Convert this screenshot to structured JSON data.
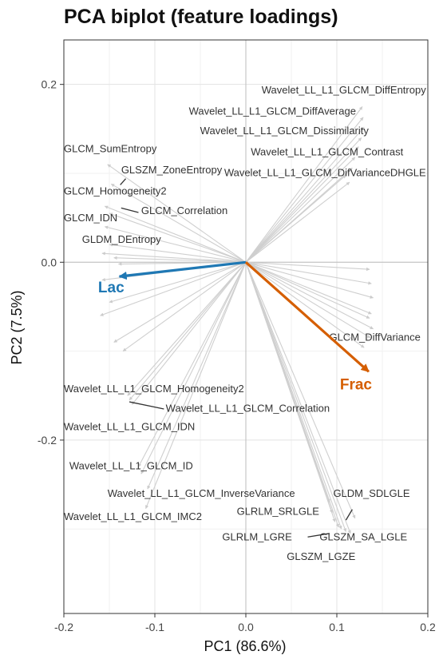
{
  "chart_data": {
    "type": "biplot",
    "title": "PCA biplot (feature loadings)",
    "xlabel": "PC1 (86.6%)",
    "ylabel": "PC2 (7.5%)",
    "xlim": [
      -0.2,
      0.2
    ],
    "ylim": [
      -0.395,
      0.25
    ],
    "xticks": [
      -0.2,
      -0.1,
      0.0,
      0.1,
      0.2
    ],
    "xtick_labels": [
      "-0.2",
      "-0.1",
      "0.0",
      "0.1",
      "0.2"
    ],
    "yticks": [
      -0.2,
      0.0,
      0.2
    ],
    "ytick_labels": [
      "-0.2",
      "0.0",
      "0.2"
    ],
    "grid": true,
    "groups": [
      {
        "name": "Lac",
        "x": -0.139,
        "y": -0.016,
        "color": "#1f78b4",
        "label_x": -0.148,
        "label_y": -0.034
      },
      {
        "name": "Frac",
        "x": 0.135,
        "y": -0.123,
        "color": "#d55e00",
        "label_x": 0.121,
        "label_y": -0.143
      }
    ],
    "loadings": [
      [
        0.128,
        0.175
      ],
      [
        0.129,
        0.163
      ],
      [
        0.13,
        0.152
      ],
      [
        0.127,
        0.14
      ],
      [
        0.124,
        0.13
      ],
      [
        0.12,
        0.118
      ],
      [
        0.117,
        0.106
      ],
      [
        0.11,
        0.098
      ],
      [
        0.114,
        0.09
      ],
      [
        -0.152,
        0.11
      ],
      [
        -0.148,
        0.088
      ],
      [
        -0.155,
        0.063
      ],
      [
        -0.15,
        0.055
      ],
      [
        -0.155,
        0.04
      ],
      [
        -0.15,
        0.02
      ],
      [
        -0.158,
        0.01
      ],
      [
        -0.145,
        0.005
      ],
      [
        -0.14,
        -0.002
      ],
      [
        -0.158,
        -0.02
      ],
      [
        -0.15,
        -0.045
      ],
      [
        -0.16,
        -0.06
      ],
      [
        -0.145,
        -0.09
      ],
      [
        -0.135,
        -0.1
      ],
      [
        -0.13,
        -0.15
      ],
      [
        -0.128,
        -0.155
      ],
      [
        -0.125,
        -0.16
      ],
      [
        -0.118,
        -0.23
      ],
      [
        -0.115,
        -0.238
      ],
      [
        -0.108,
        -0.255
      ],
      [
        -0.11,
        -0.277
      ],
      [
        0.136,
        -0.008
      ],
      [
        0.138,
        -0.024
      ],
      [
        0.14,
        -0.04
      ],
      [
        0.138,
        -0.058
      ],
      [
        0.136,
        -0.063
      ],
      [
        0.14,
        -0.075
      ],
      [
        0.137,
        -0.085
      ],
      [
        0.13,
        -0.096
      ],
      [
        0.092,
        -0.27
      ],
      [
        0.095,
        -0.282
      ],
      [
        0.098,
        -0.292
      ],
      [
        0.102,
        -0.298
      ],
      [
        0.105,
        -0.3
      ],
      [
        0.11,
        -0.303
      ],
      [
        0.115,
        -0.305
      ],
      [
        0.12,
        -0.288
      ]
    ],
    "feature_labels": [
      {
        "text": "Wavelet_LL_L1_GLCM_DiffEntropy",
        "x": 0.198,
        "y": 0.19,
        "anchor": "end"
      },
      {
        "text": "Wavelet_LL_L1_GLCM_DiffAverage",
        "x": 0.121,
        "y": 0.166,
        "anchor": "end"
      },
      {
        "text": "Wavelet_LL_L1_GLCM_Dissimilarity",
        "x": 0.135,
        "y": 0.144,
        "anchor": "end"
      },
      {
        "text": "Wavelet_LL_L1_GLCM_Contrast",
        "x": 0.173,
        "y": 0.12,
        "anchor": "end"
      },
      {
        "text": "Wavelet_LL_L1_GLCM_DifVarianceDHGLE",
        "x": 0.198,
        "y": 0.097,
        "anchor": "end"
      },
      {
        "text": "GLCM_SumEntropy",
        "x": -0.2,
        "y": 0.124,
        "anchor": "start"
      },
      {
        "text": "GLSZM_ZoneEntropy",
        "x": -0.137,
        "y": 0.1,
        "anchor": "start"
      },
      {
        "text": "GLCM_Homogeneity2",
        "x": -0.2,
        "y": 0.076,
        "anchor": "start"
      },
      {
        "text": "GLCM_Correlation",
        "x": -0.115,
        "y": 0.054,
        "anchor": "start"
      },
      {
        "text": "GLCM_IDN",
        "x": -0.2,
        "y": 0.046,
        "anchor": "start"
      },
      {
        "text": "GLDM_DEntropy",
        "x": -0.18,
        "y": 0.022,
        "anchor": "start"
      },
      {
        "text": "GLCM_DiffVariance",
        "x": 0.192,
        "y": -0.088,
        "anchor": "end"
      },
      {
        "text": "Wavelet_LL_L1_GLCM_Homogeneity2",
        "x": -0.2,
        "y": -0.146,
        "anchor": "start"
      },
      {
        "text": "Wavelet_LL_L1_GLCM_Correlation",
        "x": -0.088,
        "y": -0.168,
        "anchor": "start"
      },
      {
        "text": "Wavelet_LL_L1_GLCM_IDN",
        "x": -0.2,
        "y": -0.189,
        "anchor": "start"
      },
      {
        "text": "Wavelet_LL_L1_GLCM_ID",
        "x": -0.194,
        "y": -0.233,
        "anchor": "start"
      },
      {
        "text": "Wavelet_LL_L1_GLCM_InverseVariance",
        "x": -0.152,
        "y": -0.264,
        "anchor": "start"
      },
      {
        "text": "GLDM_SDLGLE",
        "x": 0.096,
        "y": -0.264,
        "anchor": "start"
      },
      {
        "text": "GLRLM_SRLGLE",
        "x": -0.01,
        "y": -0.284,
        "anchor": "start"
      },
      {
        "text": "Wavelet_LL_L1_GLCM_IMC2",
        "x": -0.2,
        "y": -0.29,
        "anchor": "start"
      },
      {
        "text": "GLRLM_LGRE",
        "x": -0.026,
        "y": -0.313,
        "anchor": "start"
      },
      {
        "text": "GLSZM_SA_LGLE",
        "x": 0.081,
        "y": -0.313,
        "anchor": "start"
      },
      {
        "text": "GLSZM_LGZE",
        "x": 0.045,
        "y": -0.335,
        "anchor": "start"
      }
    ],
    "label_leaders": [
      [
        -0.132,
        0.094,
        -0.138,
        0.087
      ],
      [
        -0.118,
        0.056,
        -0.137,
        0.061
      ],
      [
        -0.09,
        -0.165,
        -0.128,
        -0.157
      ],
      [
        0.117,
        -0.278,
        0.11,
        -0.29
      ],
      [
        0.068,
        -0.309,
        0.092,
        -0.305
      ]
    ]
  }
}
